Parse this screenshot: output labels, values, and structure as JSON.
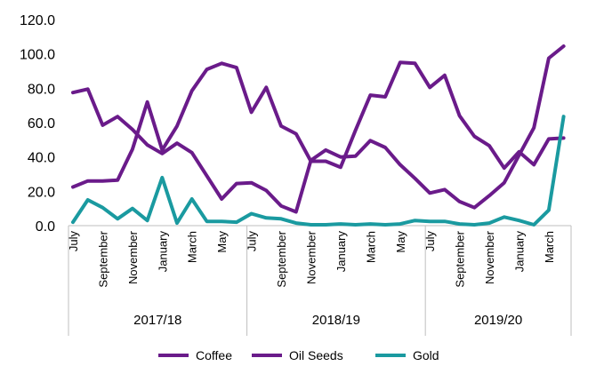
{
  "chart_data": {
    "type": "line",
    "title": "",
    "xlabel": "",
    "ylabel": "",
    "ylim": [
      0,
      120
    ],
    "yticks": [
      "0.0",
      "20.0",
      "40.0",
      "60.0",
      "80.0",
      "100.0",
      "120.0"
    ],
    "grid": false,
    "legend_position": "bottom",
    "x": [
      "July",
      "August",
      "September",
      "October",
      "November",
      "December",
      "January",
      "February",
      "March",
      "April",
      "May",
      "June",
      "July",
      "August",
      "September",
      "October",
      "November",
      "December",
      "January",
      "February",
      "March",
      "April",
      "May",
      "June",
      "July",
      "August",
      "September",
      "October",
      "November",
      "December",
      "January",
      "February",
      "March",
      "April"
    ],
    "x_tick_labels": [
      "July",
      "September",
      "November",
      "January",
      "March",
      "May",
      "July",
      "September",
      "November",
      "January",
      "March",
      "May",
      "July",
      "September",
      "November",
      "January",
      "March"
    ],
    "year_groups": [
      {
        "label": "2017/18",
        "months": 12
      },
      {
        "label": "2018/19",
        "months": 12
      },
      {
        "label": "2019/20",
        "months": 10
      }
    ],
    "series": [
      {
        "name": "Coffee",
        "color": "#6a1b8a",
        "values": [
          77.5,
          79.5,
          58.5,
          63.5,
          56,
          47,
          42,
          48,
          42.5,
          29,
          15.5,
          24.5,
          25,
          20.5,
          11.5,
          8,
          38,
          44,
          40,
          40.5,
          49.5,
          45.5,
          35.5,
          27.5,
          19,
          21,
          14,
          10.5,
          17.5,
          25,
          41,
          57,
          97.5,
          104.5
        ]
      },
      {
        "name": "Oil Seeds",
        "color": "#6a1b8a",
        "values": [
          22.5,
          26,
          26,
          26.5,
          44.5,
          72,
          44,
          58,
          78.5,
          91,
          94.5,
          92,
          66,
          80.5,
          58,
          53.5,
          37.5,
          37.5,
          34,
          55.5,
          76,
          75,
          95,
          94.5,
          80.5,
          87.5,
          64,
          52,
          46.5,
          33.5,
          43,
          35.5,
          50.5,
          51
        ]
      },
      {
        "name": "Gold",
        "color": "#1a9aa0",
        "values": [
          2,
          15,
          10.5,
          4,
          10,
          3,
          28,
          1.5,
          15.5,
          2.5,
          2.5,
          2,
          7,
          4.5,
          4,
          1.5,
          0.5,
          0.5,
          1,
          0.5,
          1,
          0.5,
          1,
          3,
          2.5,
          2.5,
          1,
          0.5,
          1.5,
          5,
          3,
          0.5,
          9,
          63.5
        ]
      }
    ]
  },
  "legend": {
    "coffee": "Coffee",
    "oil_seeds": "Oil Seeds",
    "gold": "Gold"
  }
}
